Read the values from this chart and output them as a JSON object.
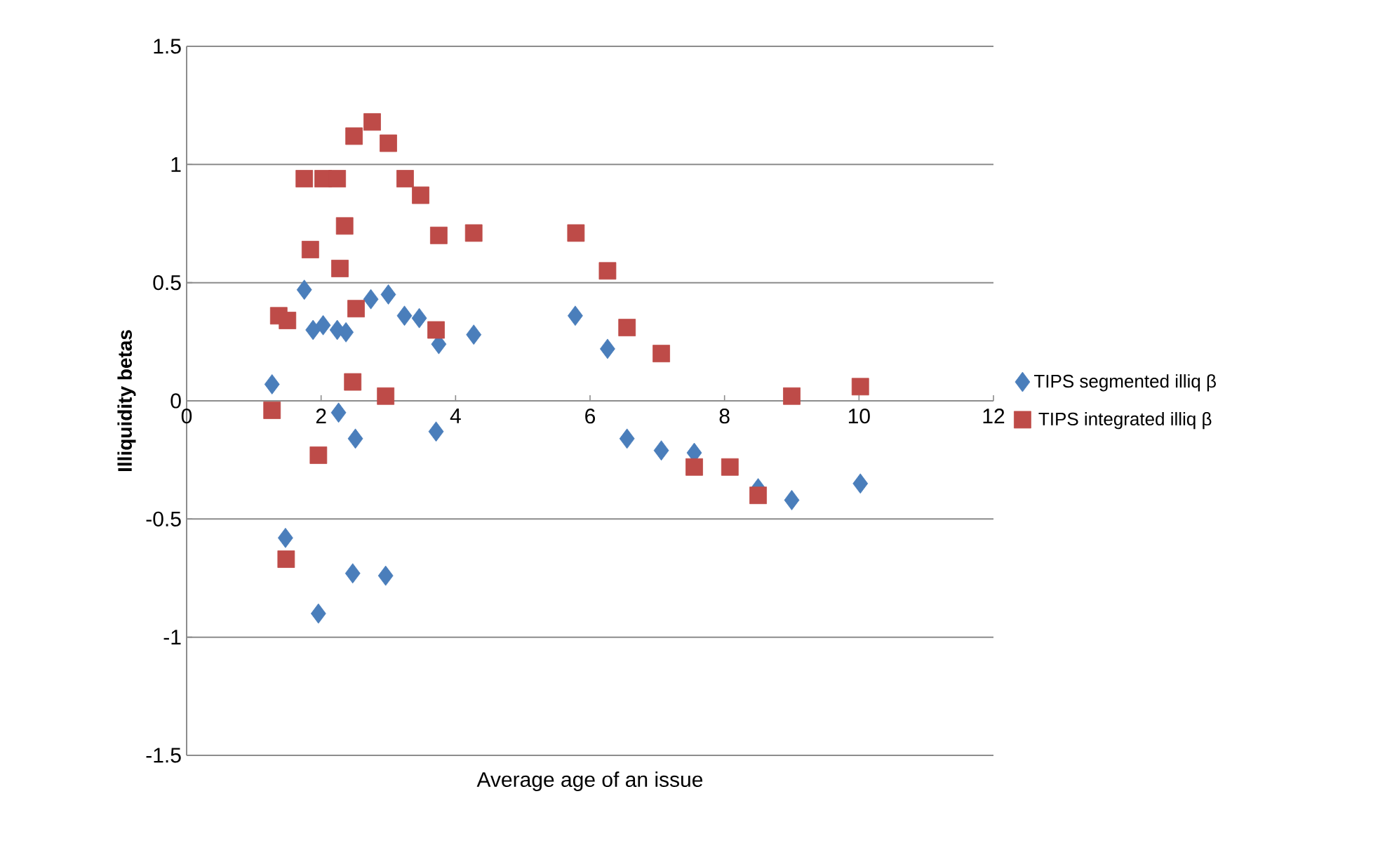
{
  "chart_data": {
    "type": "scatter",
    "xlabel": "Average age of an issue",
    "ylabel": "Illiquidity betas",
    "xlim": [
      0,
      12
    ],
    "ylim": [
      -1.5,
      1.5
    ],
    "xticks": [
      0,
      2,
      4,
      6,
      8,
      10,
      12
    ],
    "yticks": [
      -1.5,
      -1,
      -0.5,
      0,
      0.5,
      1,
      1.5
    ],
    "grid": "y",
    "legend": "right",
    "series": [
      {
        "name": "TIPS segmented illiq β",
        "color": "#4a7ebb",
        "marker": "diamond",
        "x": [
          1.27,
          1.47,
          1.75,
          1.88,
          2.03,
          1.96,
          2.26,
          2.24,
          2.37,
          2.51,
          2.47,
          2.74,
          3.0,
          2.96,
          3.24,
          3.46,
          3.75,
          3.71,
          4.27,
          5.78,
          6.26,
          6.55,
          7.06,
          7.55,
          8.5,
          9.0,
          10.02
        ],
        "values": [
          0.07,
          -0.58,
          0.47,
          0.3,
          0.32,
          -0.9,
          -0.05,
          0.3,
          0.29,
          -0.16,
          -0.73,
          0.43,
          0.45,
          -0.74,
          0.36,
          0.35,
          0.24,
          -0.13,
          0.28,
          0.36,
          0.22,
          -0.16,
          -0.21,
          -0.22,
          -0.37,
          -0.42,
          -0.35
        ]
      },
      {
        "name": "TIPS integrated illiq β",
        "color": "#be4b48",
        "marker": "square",
        "x": [
          1.27,
          1.37,
          1.5,
          1.48,
          1.75,
          1.84,
          2.03,
          1.96,
          2.24,
          2.35,
          2.28,
          2.49,
          2.76,
          3.0,
          2.47,
          2.52,
          2.96,
          3.25,
          3.48,
          3.75,
          3.71,
          4.27,
          5.79,
          6.26,
          6.55,
          7.06,
          7.55,
          8.08,
          8.5,
          9.0,
          10.02
        ],
        "values": [
          -0.04,
          0.36,
          0.34,
          -0.67,
          0.94,
          0.64,
          0.94,
          -0.23,
          0.94,
          0.74,
          0.56,
          1.12,
          1.18,
          1.09,
          0.08,
          0.39,
          0.02,
          0.94,
          0.87,
          0.7,
          0.3,
          0.71,
          0.71,
          0.55,
          0.31,
          0.2,
          -0.28,
          -0.28,
          -0.4,
          0.02,
          0.06
        ]
      }
    ]
  }
}
